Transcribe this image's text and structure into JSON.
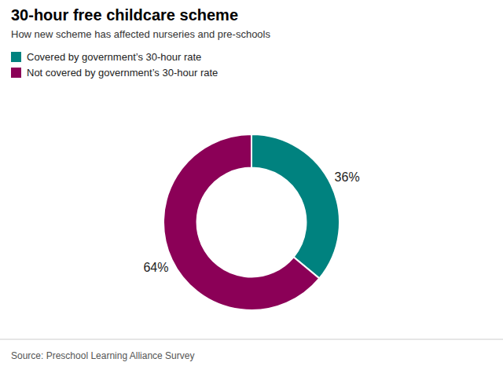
{
  "chart_data": {
    "type": "donut",
    "title": "30-hour free childcare scheme",
    "subtitle": "How new scheme has affected nurseries and pre-schools",
    "categories": [
      "Covered by government’s 30-hour rate",
      "Not covered by government’s 30-hour rate"
    ],
    "values": [
      36,
      64
    ],
    "value_labels": [
      "36%",
      "64%"
    ],
    "colors": [
      "#00827F",
      "#8B0057"
    ],
    "data_labels": true,
    "legend": "upper left",
    "source": "Source: Preschool Learning Alliance Survey"
  }
}
